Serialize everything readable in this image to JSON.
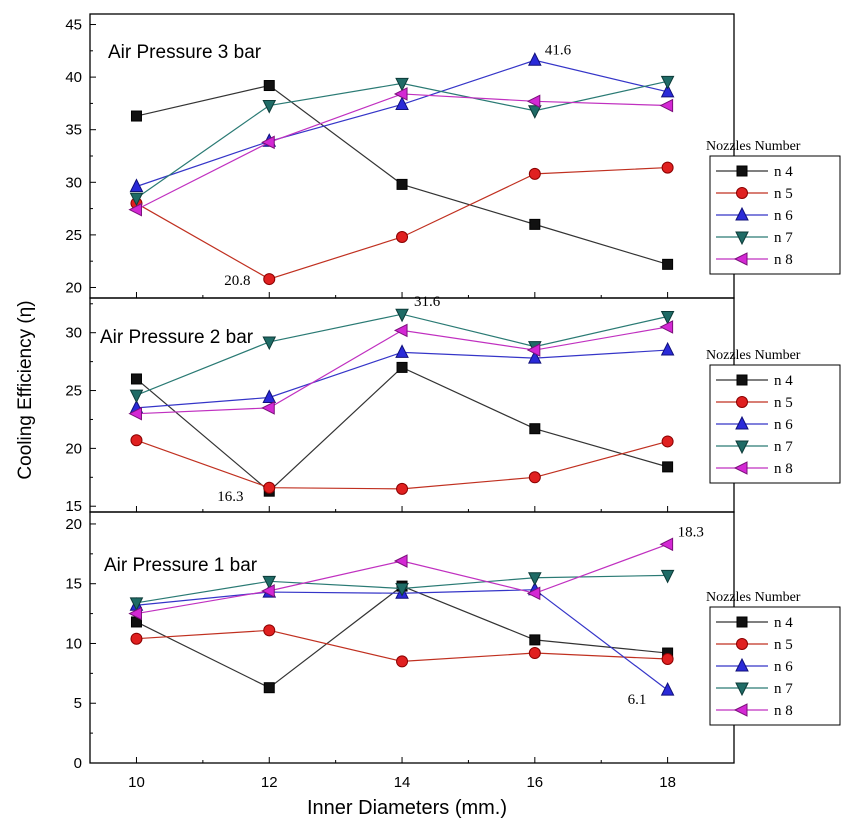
{
  "chart_data": [
    {
      "type": "line",
      "title": "Air Pressure 3 bar",
      "x": [
        10,
        12,
        14,
        16,
        18
      ],
      "xticks": [
        "10",
        "12",
        "14",
        "16",
        "18"
      ],
      "ylim": [
        19,
        46
      ],
      "yticks": [
        "20",
        "25",
        "30",
        "35",
        "40",
        "45"
      ],
      "legend_title": "Nozzles Number",
      "series": [
        {
          "name": "n 4",
          "values": [
            36.3,
            39.2,
            29.8,
            26.0,
            22.2
          ]
        },
        {
          "name": "n 5",
          "values": [
            28.0,
            20.8,
            24.8,
            30.8,
            31.4
          ]
        },
        {
          "name": "n 6",
          "values": [
            29.6,
            33.9,
            37.4,
            41.6,
            38.6
          ]
        },
        {
          "name": "n 7",
          "values": [
            28.5,
            37.3,
            39.4,
            36.8,
            39.6
          ]
        },
        {
          "name": "n 8",
          "values": [
            27.4,
            33.8,
            38.4,
            37.7,
            37.3
          ]
        }
      ],
      "annotations": [
        {
          "text": "20.8",
          "x": 12,
          "y": 20.8
        },
        {
          "text": "41.6",
          "x": 16,
          "y": 41.6
        }
      ]
    },
    {
      "type": "line",
      "title": "Air Pressure 2 bar",
      "x": [
        10,
        12,
        14,
        16,
        18
      ],
      "xticks": [
        "10",
        "12",
        "14",
        "16",
        "18"
      ],
      "ylim": [
        14.5,
        33
      ],
      "yticks": [
        "15",
        "20",
        "25",
        "30"
      ],
      "legend_title": "Nozzles Number",
      "series": [
        {
          "name": "n 4",
          "values": [
            26.0,
            16.3,
            27.0,
            21.7,
            18.4
          ]
        },
        {
          "name": "n 5",
          "values": [
            20.7,
            16.6,
            16.5,
            17.5,
            20.6
          ]
        },
        {
          "name": "n 6",
          "values": [
            23.5,
            24.4,
            28.3,
            27.8,
            28.5
          ]
        },
        {
          "name": "n 7",
          "values": [
            24.6,
            29.2,
            31.6,
            28.8,
            31.4
          ]
        },
        {
          "name": "n 8",
          "values": [
            23.0,
            23.5,
            30.2,
            28.5,
            30.5
          ]
        }
      ],
      "annotations": [
        {
          "text": "16.3",
          "x": 12,
          "y": 16.3
        },
        {
          "text": "31.6",
          "x": 14,
          "y": 31.6
        }
      ]
    },
    {
      "type": "line",
      "title": "Air Pressure 1 bar",
      "x": [
        10,
        12,
        14,
        16,
        18
      ],
      "xticks": [
        "10",
        "12",
        "14",
        "16",
        "18"
      ],
      "ylim": [
        0,
        21
      ],
      "yticks": [
        "0",
        "5",
        "10",
        "15",
        "20"
      ],
      "legend_title": "Nozzles Number",
      "series": [
        {
          "name": "n 4",
          "values": [
            11.8,
            6.3,
            14.8,
            10.3,
            9.2
          ]
        },
        {
          "name": "n 5",
          "values": [
            10.4,
            11.1,
            8.5,
            9.2,
            8.7
          ]
        },
        {
          "name": "n 6",
          "values": [
            13.2,
            14.3,
            14.2,
            14.5,
            6.1
          ]
        },
        {
          "name": "n 7",
          "values": [
            13.4,
            15.2,
            14.6,
            15.5,
            15.7
          ]
        },
        {
          "name": "n 8",
          "values": [
            12.5,
            14.4,
            16.9,
            14.2,
            18.3
          ]
        }
      ],
      "annotations": [
        {
          "text": "6.1",
          "x": 18,
          "y": 6.1
        },
        {
          "text": "18.3",
          "x": 18,
          "y": 18.3
        }
      ]
    }
  ],
  "ylabel": "Cooling Efficiency  (η)",
  "xlabel": "Inner Diameters (mm.)",
  "series_style": [
    {
      "marker": "square",
      "fill": "#111111",
      "stroke": "#000000",
      "line": "#333333"
    },
    {
      "marker": "circle",
      "fill": "#e02020",
      "stroke": "#8a0000",
      "line": "#c03020"
    },
    {
      "marker": "triangle-up",
      "fill": "#2a2ad8",
      "stroke": "#10107a",
      "line": "#3535c8"
    },
    {
      "marker": "triangle-down",
      "fill": "#1f6b66",
      "stroke": "#0d3b38",
      "line": "#2a7a74"
    },
    {
      "marker": "triangle-left",
      "fill": "#d428d4",
      "stroke": "#7a107a",
      "line": "#c030c0"
    }
  ]
}
